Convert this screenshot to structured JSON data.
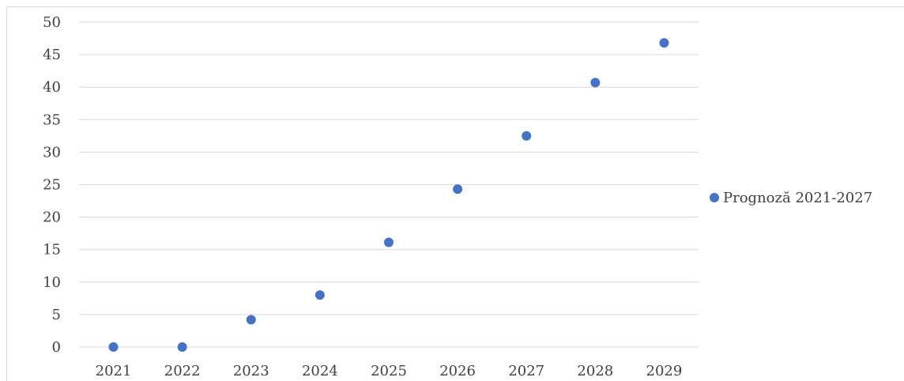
{
  "chart_data": {
    "type": "scatter",
    "title": "",
    "xlabel": "",
    "ylabel": "",
    "x": [
      "2021",
      "2022",
      "2023",
      "2024",
      "2025",
      "2026",
      "2027",
      "2028",
      "2029"
    ],
    "series": [
      {
        "name": "Prognoză 2021-2027",
        "values": [
          0,
          0,
          4.2,
          8.0,
          16.1,
          24.3,
          32.5,
          40.7,
          46.8
        ],
        "color": "#4472c4"
      }
    ],
    "ylim": [
      0,
      50
    ],
    "yticks": [
      "0",
      "5",
      "10",
      "15",
      "20",
      "25",
      "30",
      "35",
      "40",
      "45",
      "50"
    ],
    "grid": true,
    "legend_position": "right"
  }
}
